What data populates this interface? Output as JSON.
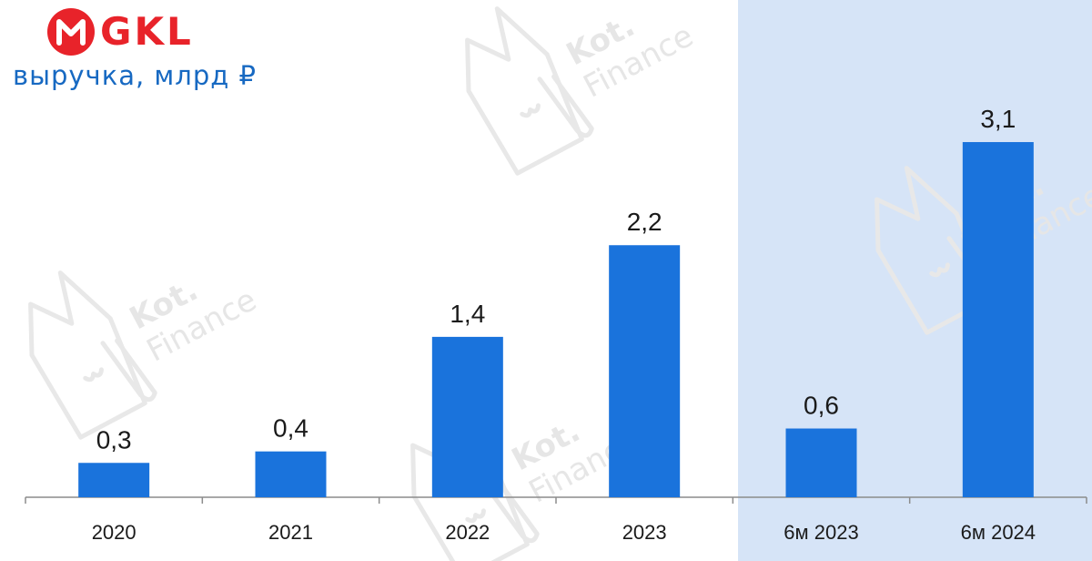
{
  "header": {
    "logo_text": "GKL",
    "subtitle": "выручка, млрд ₽"
  },
  "watermark": {
    "line1": "Kot.",
    "line2": "Finance"
  },
  "colors": {
    "bar": "#1a73dc",
    "highlight_band": "#d6e4f7",
    "logo": "#e8232a",
    "subtitle": "#1769c2"
  },
  "chart_data": {
    "type": "bar",
    "categories": [
      "2020",
      "2021",
      "2022",
      "2023",
      "6м 2023",
      "6м 2024"
    ],
    "values": [
      0.3,
      0.4,
      1.4,
      2.2,
      0.6,
      3.1
    ],
    "value_labels": [
      "0,3",
      "0,4",
      "1,4",
      "2,2",
      "0,6",
      "3,1"
    ],
    "title": "выручка, млрд ₽",
    "xlabel": "",
    "ylabel": "",
    "ylim": [
      0,
      3.6
    ],
    "grid": false,
    "legend": "none",
    "highlighted_categories": [
      "6м 2023",
      "6м 2024"
    ]
  }
}
